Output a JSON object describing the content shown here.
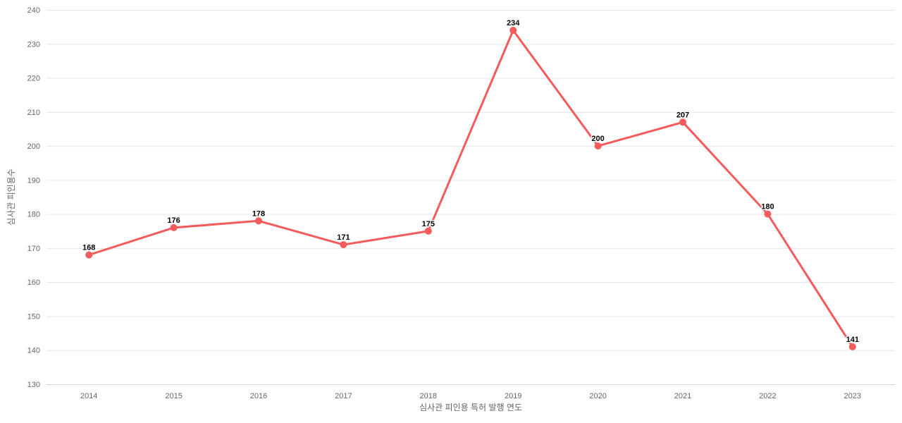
{
  "chart_data": {
    "type": "line",
    "title": "",
    "xlabel": "심사관 피인용 특허 발행 연도",
    "ylabel": "심사관 피인용수",
    "categories": [
      "2014",
      "2015",
      "2016",
      "2017",
      "2018",
      "2019",
      "2020",
      "2021",
      "2022",
      "2023"
    ],
    "values": [
      168,
      176,
      178,
      171,
      175,
      234,
      200,
      207,
      180,
      141
    ],
    "yticks": [
      130,
      140,
      150,
      160,
      170,
      180,
      190,
      200,
      210,
      220,
      230,
      240
    ],
    "ylim": [
      130,
      240
    ],
    "grid": true,
    "legend_position": "none",
    "data_labels_visible": true,
    "colors": {
      "series": "#f45b5b",
      "marker": "#f45b5b",
      "grid_line": "#e6e6e6",
      "axis_line": "#ccd6eb",
      "tick_label": "#666666",
      "axis_title": "#666666",
      "data_label": "#000000",
      "background": "#ffffff"
    }
  }
}
